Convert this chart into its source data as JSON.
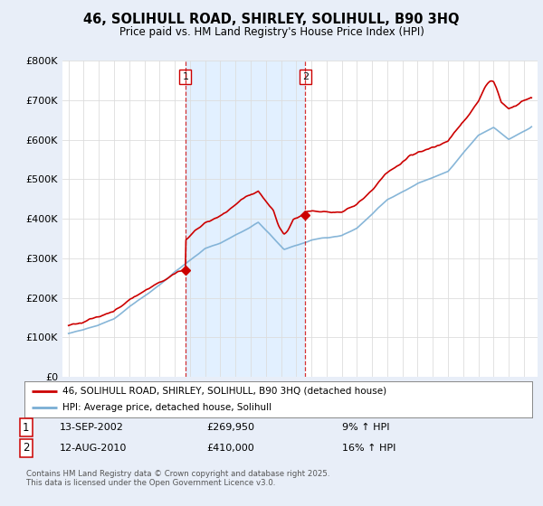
{
  "title": "46, SOLIHULL ROAD, SHIRLEY, SOLIHULL, B90 3HQ",
  "subtitle": "Price paid vs. HM Land Registry's House Price Index (HPI)",
  "legend_line1": "46, SOLIHULL ROAD, SHIRLEY, SOLIHULL, B90 3HQ (detached house)",
  "legend_line2": "HPI: Average price, detached house, Solihull",
  "annotation1_date": "13-SEP-2002",
  "annotation1_price": "£269,950",
  "annotation1_hpi": "9% ↑ HPI",
  "annotation2_date": "12-AUG-2010",
  "annotation2_price": "£410,000",
  "annotation2_hpi": "16% ↑ HPI",
  "footer": "Contains HM Land Registry data © Crown copyright and database right 2025.\nThis data is licensed under the Open Government Licence v3.0.",
  "red_color": "#cc0000",
  "blue_color": "#7aaed4",
  "shade_color": "#ddeeff",
  "bg_color": "#e8eef8",
  "plot_bg_color": "#ffffff",
  "grid_color": "#dddddd",
  "ylim": [
    0,
    800000
  ],
  "yticks": [
    0,
    100000,
    200000,
    300000,
    400000,
    500000,
    600000,
    700000,
    800000
  ],
  "ytick_labels": [
    "£0",
    "£100K",
    "£200K",
    "£300K",
    "£400K",
    "£500K",
    "£600K",
    "£700K",
    "£800K"
  ],
  "marker1_x": 2002.7,
  "marker1_y": 269950,
  "marker2_x": 2010.6,
  "marker2_y": 410000,
  "xlim_left": 1994.6,
  "xlim_right": 2025.9
}
